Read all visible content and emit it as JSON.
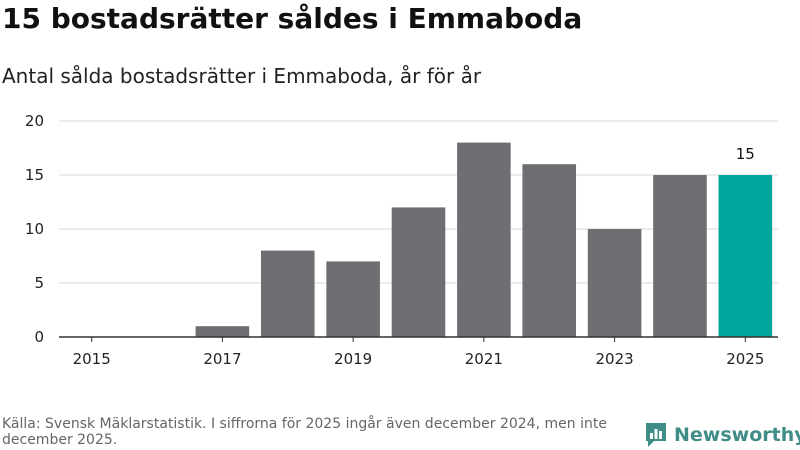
{
  "title": "15 bostadsrätter såldes i Emmaboda",
  "subtitle": "Antal sålda bostadsrätter i Emmaboda, år för år",
  "footer": "Källa: Svensk Mäklarstatistik. I siffrorna för 2025 ingår även december 2024, men inte december 2025.",
  "brand": "Newsworthy",
  "colors": {
    "bar": "#6f6e73",
    "highlight": "#00a59b",
    "grid": "#d9d9d9",
    "axis": "#333333",
    "brand": "#3f8d86"
  },
  "chart_data": {
    "type": "bar",
    "title": "Antal sålda bostadsrätter i Emmaboda, år för år",
    "xlabel": "",
    "ylabel": "",
    "categories": [
      "2015",
      "2016",
      "2017",
      "2018",
      "2019",
      "2020",
      "2021",
      "2022",
      "2023",
      "2024",
      "2025"
    ],
    "values": [
      0,
      0,
      1,
      8,
      7,
      12,
      18,
      16,
      10,
      15,
      15
    ],
    "ylim": [
      0,
      20
    ],
    "yticks": [
      0,
      5,
      10,
      15,
      20
    ],
    "xticks": [
      "2015",
      "2017",
      "2019",
      "2021",
      "2023",
      "2025"
    ],
    "highlight_index": 10,
    "data_labels": [
      {
        "index": 10,
        "text": "15"
      }
    ],
    "grid": true
  }
}
